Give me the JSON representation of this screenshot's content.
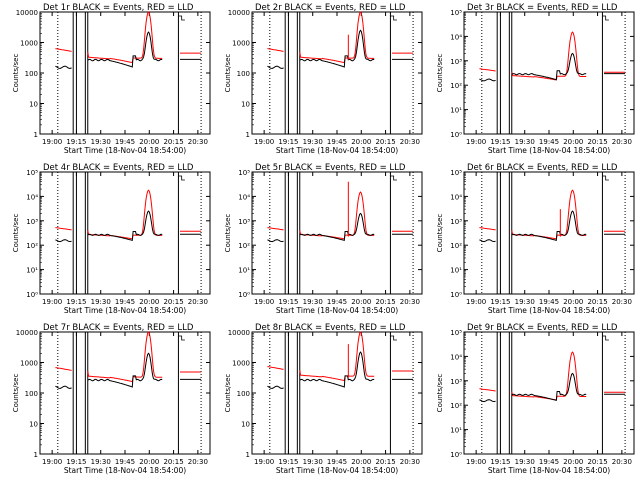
{
  "chart_data": [
    {
      "type": "line",
      "title": "Det 1r BLACK = Events, RED = LLD",
      "xlabel": "Start Time (18-Nov-04 18:54:00)",
      "ylabel": "Counts/sec",
      "ylog": true,
      "ylim": [
        1,
        10000
      ],
      "yticks": [
        "1",
        "10",
        "100",
        "1000",
        "10000"
      ],
      "xticks": [
        "19:00",
        "19:15",
        "19:30",
        "19:45",
        "20:00",
        "20:15",
        "20:30"
      ],
      "events_level": 280,
      "lld_level": 600,
      "peak_events": 2200,
      "peak_lld": 10000,
      "spike": null,
      "series": [
        {
          "name": "Events",
          "color": "#000000"
        },
        {
          "name": "LLD",
          "color": "#ff0000"
        }
      ]
    },
    {
      "type": "line",
      "title": "Det 2r BLACK = Events, RED = LLD",
      "xlabel": "Start Time (18-Nov-04 18:54:00)",
      "ylabel": "Counts/sec",
      "ylog": true,
      "ylim": [
        1,
        10000
      ],
      "yticks": [
        "1",
        "10",
        "100",
        "1000",
        "10000"
      ],
      "xticks": [
        "19:00",
        "19:15",
        "19:30",
        "19:45",
        "20:00",
        "20:15",
        "20:30"
      ],
      "events_level": 280,
      "lld_level": 600,
      "peak_events": 2500,
      "peak_lld": 10000,
      "spike": 1800,
      "series": [
        {
          "name": "Events",
          "color": "#000000"
        },
        {
          "name": "LLD",
          "color": "#ff0000"
        }
      ]
    },
    {
      "type": "line",
      "title": "Det 3r BLACK = Events, RED = LLD",
      "xlabel": "Start Time (18-Nov-04 18:54:00)",
      "ylabel": "Counts/sec",
      "ylog": true,
      "ylim": [
        1,
        100000
      ],
      "yticks": [
        "10⁰",
        "10¹",
        "10²",
        "10³",
        "10⁴",
        "10⁵"
      ],
      "xticks": [
        "19:00",
        "19:15",
        "19:30",
        "19:45",
        "20:00",
        "20:15",
        "20:30"
      ],
      "events_level": 300,
      "lld_level": 450,
      "peak_events": 2000,
      "peak_lld": 15000,
      "spike": null,
      "series": [
        {
          "name": "Events",
          "color": "#000000"
        },
        {
          "name": "LLD",
          "color": "#ff0000"
        }
      ]
    },
    {
      "type": "line",
      "title": "Det 4r BLACK = Events, RED = LLD",
      "xlabel": "Start Time (18-Nov-04 18:54:00)",
      "ylabel": "Counts/sec",
      "ylog": true,
      "ylim": [
        1,
        100000
      ],
      "yticks": [
        "10⁰",
        "10¹",
        "10²",
        "10³",
        "10⁴",
        "10⁵"
      ],
      "xticks": [
        "19:00",
        "19:15",
        "19:30",
        "19:45",
        "20:00",
        "20:15",
        "20:30"
      ],
      "events_level": 280,
      "lld_level": 500,
      "peak_events": 2500,
      "peak_lld": 18000,
      "spike": null,
      "series": [
        {
          "name": "Events",
          "color": "#000000"
        },
        {
          "name": "LLD",
          "color": "#ff0000"
        }
      ]
    },
    {
      "type": "line",
      "title": "Det 5r BLACK = Events, RED = LLD",
      "xlabel": "Start Time (18-Nov-04 18:54:00)",
      "ylabel": "Counts/sec",
      "ylog": true,
      "ylim": [
        1,
        100000
      ],
      "yticks": [
        "10⁰",
        "10¹",
        "10²",
        "10³",
        "10⁴",
        "10⁵"
      ],
      "xticks": [
        "19:00",
        "19:15",
        "19:30",
        "19:45",
        "20:00",
        "20:15",
        "20:30"
      ],
      "events_level": 280,
      "lld_level": 500,
      "peak_events": 2000,
      "peak_lld": 15000,
      "spike": 40000,
      "series": [
        {
          "name": "Events",
          "color": "#000000"
        },
        {
          "name": "LLD",
          "color": "#ff0000"
        }
      ]
    },
    {
      "type": "line",
      "title": "Det 6r BLACK = Events, RED = LLD",
      "xlabel": "Start Time (18-Nov-04 18:54:00)",
      "ylabel": "Counts/sec",
      "ylog": true,
      "ylim": [
        1,
        100000
      ],
      "yticks": [
        "10⁰",
        "10¹",
        "10²",
        "10³",
        "10⁴",
        "10⁵"
      ],
      "xticks": [
        "19:00",
        "19:15",
        "19:30",
        "19:45",
        "20:00",
        "20:15",
        "20:30"
      ],
      "events_level": 280,
      "lld_level": 500,
      "peak_events": 2500,
      "peak_lld": 18000,
      "spike": 3000,
      "series": [
        {
          "name": "Events",
          "color": "#000000"
        },
        {
          "name": "LLD",
          "color": "#ff0000"
        }
      ]
    },
    {
      "type": "line",
      "title": "Det 7r BLACK = Events, RED = LLD",
      "xlabel": "Start Time (18-Nov-04 18:54:00)",
      "ylabel": "Counts/sec",
      "ylog": true,
      "ylim": [
        1,
        10000
      ],
      "yticks": [
        "1",
        "10",
        "100",
        "1000",
        "10000"
      ],
      "xticks": [
        "19:00",
        "19:15",
        "19:30",
        "19:45",
        "20:00",
        "20:15",
        "20:30"
      ],
      "events_level": 280,
      "lld_level": 650,
      "peak_events": 2000,
      "peak_lld": 10000,
      "spike": null,
      "series": [
        {
          "name": "Events",
          "color": "#000000"
        },
        {
          "name": "LLD",
          "color": "#ff0000"
        }
      ]
    },
    {
      "type": "line",
      "title": "Det 8r BLACK = Events, RED = LLD",
      "xlabel": "Start Time (18-Nov-04 18:54:00)",
      "ylabel": "Counts/sec",
      "ylog": true,
      "ylim": [
        1,
        10000
      ],
      "yticks": [
        "1",
        "10",
        "100",
        "1000",
        "10000"
      ],
      "xticks": [
        "19:00",
        "19:15",
        "19:30",
        "19:45",
        "20:00",
        "20:15",
        "20:30"
      ],
      "events_level": 280,
      "lld_level": 700,
      "peak_events": 2200,
      "peak_lld": 10000,
      "spike": 4000,
      "series": [
        {
          "name": "Events",
          "color": "#000000"
        },
        {
          "name": "LLD",
          "color": "#ff0000"
        }
      ]
    },
    {
      "type": "line",
      "title": "Det 9r BLACK = Events, RED = LLD",
      "xlabel": "Start Time (18-Nov-04 18:54:00)",
      "ylabel": "Counts/sec",
      "ylog": true,
      "ylim": [
        1,
        100000
      ],
      "yticks": [
        "10⁰",
        "10¹",
        "10²",
        "10³",
        "10⁴",
        "10⁵"
      ],
      "xticks": [
        "19:00",
        "19:15",
        "19:30",
        "19:45",
        "20:00",
        "20:15",
        "20:30"
      ],
      "events_level": 280,
      "lld_level": 450,
      "peak_events": 2000,
      "peak_lld": 15000,
      "spike": null,
      "series": [
        {
          "name": "Events",
          "color": "#000000"
        },
        {
          "name": "LLD",
          "color": "#ff0000"
        }
      ]
    }
  ]
}
